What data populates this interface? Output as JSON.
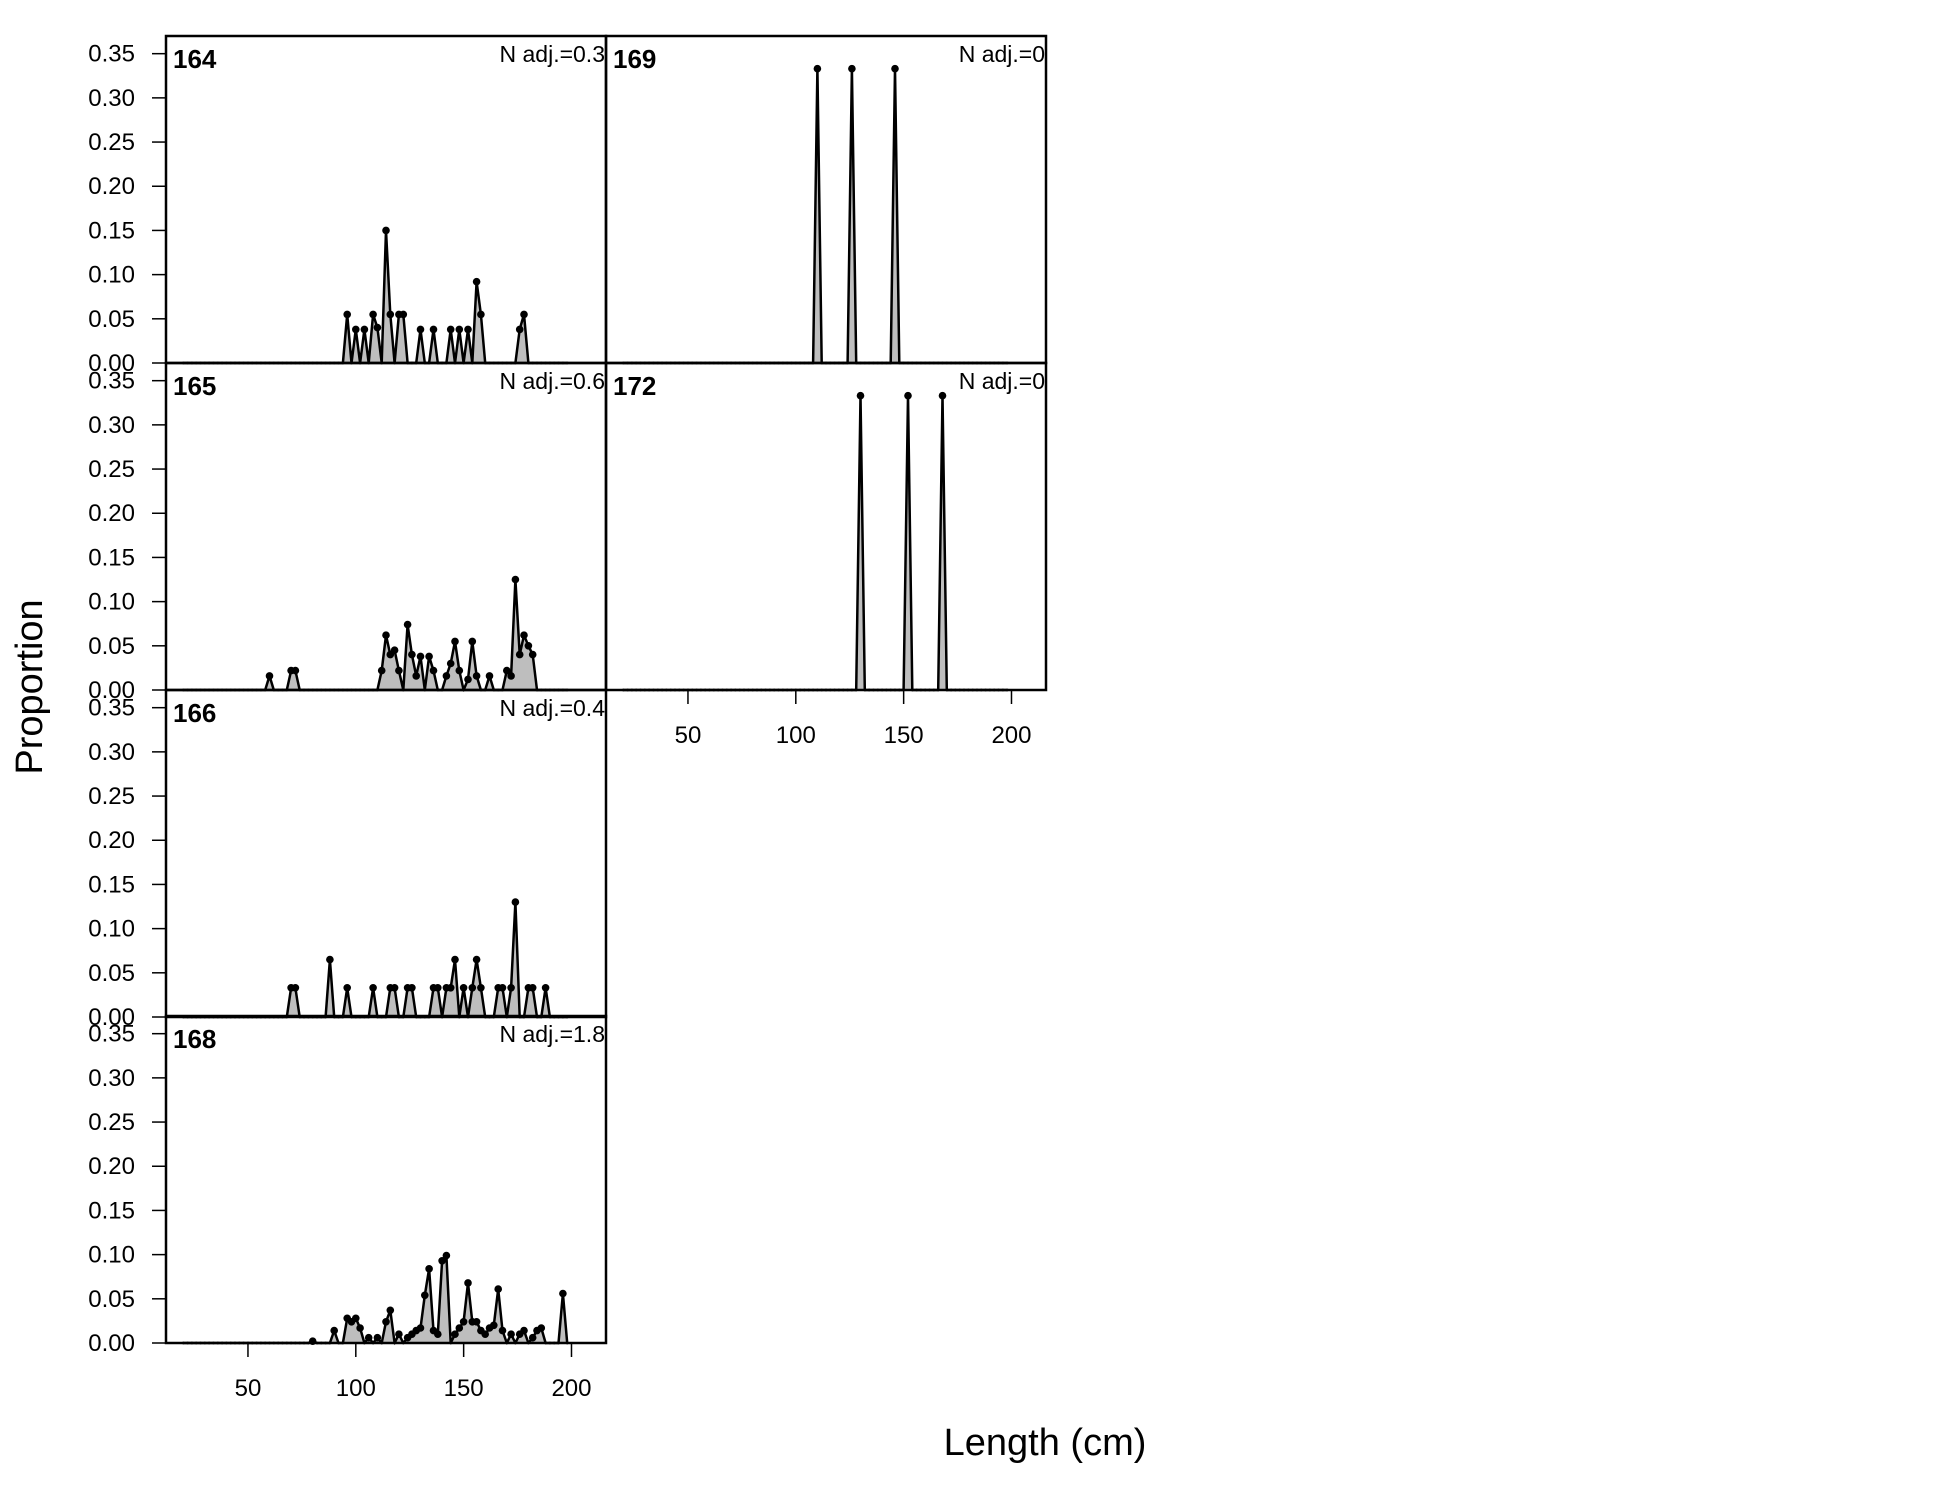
{
  "chart_data": {
    "type": "area",
    "ylabel": "Proportion",
    "xlabel": "Length (cm)",
    "x_ticks": [
      50,
      100,
      150,
      200
    ],
    "y_ticks": [
      "0.00",
      "0.05",
      "0.10",
      "0.15",
      "0.20",
      "0.25",
      "0.30",
      "0.35"
    ],
    "xlim": [
      12,
      216
    ],
    "ylim": [
      0,
      0.37
    ],
    "bin_start": 20,
    "bin_end": 198,
    "bin_width": 2,
    "colors": {
      "observed_fill": "#bebebe",
      "expected_line": "#000000",
      "points": "#000000"
    },
    "panels": [
      {
        "label": "164",
        "n_adj": "N adj.=0.3",
        "obs": [
          [
            96,
            0.055
          ],
          [
            100,
            0.038
          ],
          [
            104,
            0.038
          ],
          [
            108,
            0.055
          ],
          [
            110,
            0.04
          ],
          [
            114,
            0.15
          ],
          [
            116,
            0.055
          ],
          [
            120,
            0.055
          ],
          [
            122,
            0.055
          ],
          [
            130,
            0.038
          ],
          [
            136,
            0.038
          ],
          [
            144,
            0.038
          ],
          [
            148,
            0.038
          ],
          [
            152,
            0.038
          ],
          [
            156,
            0.092
          ],
          [
            158,
            0.055
          ],
          [
            176,
            0.038
          ],
          [
            178,
            0.055
          ]
        ]
      },
      {
        "label": "165",
        "n_adj": "N adj.=0.6",
        "obs": [
          [
            60,
            0.016
          ],
          [
            70,
            0.022
          ],
          [
            72,
            0.022
          ],
          [
            112,
            0.022
          ],
          [
            114,
            0.062
          ],
          [
            116,
            0.04
          ],
          [
            118,
            0.045
          ],
          [
            120,
            0.022
          ],
          [
            124,
            0.074
          ],
          [
            126,
            0.04
          ],
          [
            128,
            0.016
          ],
          [
            130,
            0.038
          ],
          [
            134,
            0.038
          ],
          [
            136,
            0.022
          ],
          [
            142,
            0.016
          ],
          [
            144,
            0.03
          ],
          [
            146,
            0.055
          ],
          [
            148,
            0.022
          ],
          [
            152,
            0.012
          ],
          [
            154,
            0.055
          ],
          [
            156,
            0.016
          ],
          [
            162,
            0.016
          ],
          [
            170,
            0.022
          ],
          [
            172,
            0.016
          ],
          [
            174,
            0.125
          ],
          [
            176,
            0.04
          ],
          [
            178,
            0.062
          ],
          [
            180,
            0.05
          ],
          [
            182,
            0.04
          ]
        ]
      },
      {
        "label": "166",
        "n_adj": "N adj.=0.4",
        "obs": [
          [
            70,
            0.033
          ],
          [
            72,
            0.033
          ],
          [
            88,
            0.065
          ],
          [
            96,
            0.033
          ],
          [
            108,
            0.033
          ],
          [
            116,
            0.033
          ],
          [
            118,
            0.033
          ],
          [
            124,
            0.033
          ],
          [
            126,
            0.033
          ],
          [
            136,
            0.033
          ],
          [
            138,
            0.033
          ],
          [
            142,
            0.033
          ],
          [
            144,
            0.033
          ],
          [
            146,
            0.065
          ],
          [
            150,
            0.033
          ],
          [
            154,
            0.033
          ],
          [
            156,
            0.065
          ],
          [
            158,
            0.033
          ],
          [
            166,
            0.033
          ],
          [
            168,
            0.033
          ],
          [
            172,
            0.033
          ],
          [
            174,
            0.13
          ],
          [
            180,
            0.033
          ],
          [
            182,
            0.033
          ],
          [
            188,
            0.033
          ]
        ]
      },
      {
        "label": "168",
        "n_adj": "N adj.=1.8",
        "obs": [
          [
            80,
            0.002
          ],
          [
            90,
            0.014
          ],
          [
            96,
            0.028
          ],
          [
            98,
            0.024
          ],
          [
            100,
            0.028
          ],
          [
            102,
            0.017
          ],
          [
            106,
            0.006
          ],
          [
            110,
            0.006
          ],
          [
            114,
            0.024
          ],
          [
            116,
            0.037
          ],
          [
            120,
            0.01
          ],
          [
            124,
            0.006
          ],
          [
            126,
            0.01
          ],
          [
            128,
            0.014
          ],
          [
            130,
            0.017
          ],
          [
            132,
            0.054
          ],
          [
            134,
            0.084
          ],
          [
            136,
            0.014
          ],
          [
            138,
            0.01
          ],
          [
            140,
            0.093
          ],
          [
            142,
            0.099
          ],
          [
            146,
            0.01
          ],
          [
            148,
            0.017
          ],
          [
            150,
            0.024
          ],
          [
            152,
            0.068
          ],
          [
            154,
            0.024
          ],
          [
            156,
            0.024
          ],
          [
            158,
            0.014
          ],
          [
            160,
            0.01
          ],
          [
            162,
            0.017
          ],
          [
            164,
            0.02
          ],
          [
            166,
            0.061
          ],
          [
            168,
            0.014
          ],
          [
            172,
            0.01
          ],
          [
            176,
            0.01
          ],
          [
            178,
            0.014
          ],
          [
            182,
            0.006
          ],
          [
            184,
            0.014
          ],
          [
            186,
            0.017
          ],
          [
            196,
            0.056
          ]
        ]
      },
      {
        "label": "169",
        "n_adj": "N adj.=0",
        "obs": [
          [
            110,
            0.333
          ],
          [
            126,
            0.333
          ],
          [
            146,
            0.333
          ]
        ]
      },
      {
        "label": "172",
        "n_adj": "N adj.=0",
        "obs": [
          [
            130,
            0.333
          ],
          [
            152,
            0.333
          ],
          [
            168,
            0.333
          ]
        ]
      }
    ]
  }
}
